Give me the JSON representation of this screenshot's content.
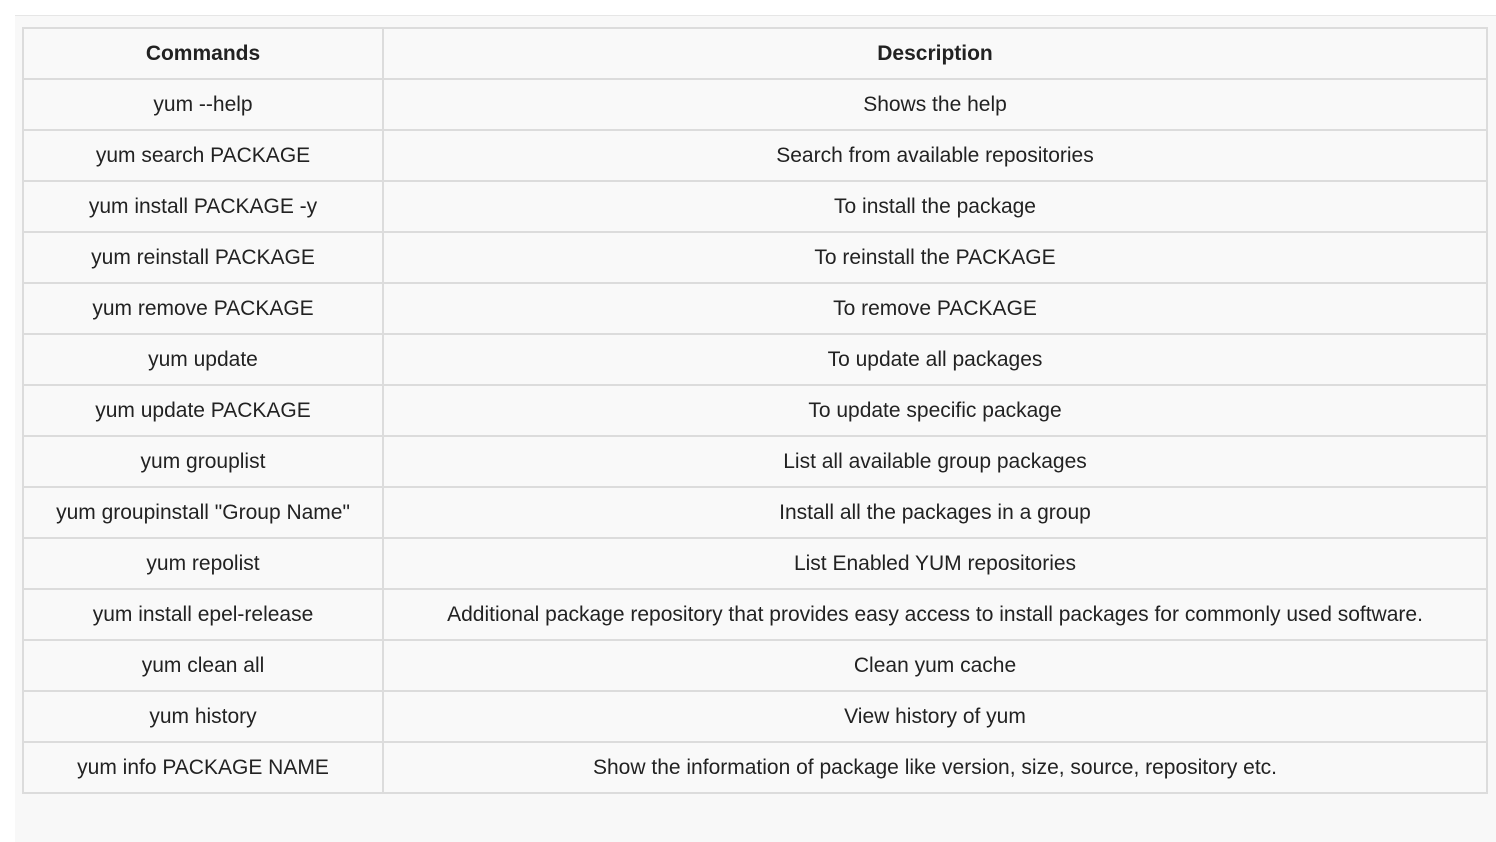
{
  "table": {
    "headers": [
      "Commands",
      "Description"
    ],
    "rows": [
      [
        "yum --help",
        "Shows the help"
      ],
      [
        "yum search PACKAGE",
        "Search from available repositories"
      ],
      [
        "yum install PACKAGE -y",
        "To install the package"
      ],
      [
        "yum reinstall PACKAGE",
        "To reinstall the PACKAGE"
      ],
      [
        "yum remove PACKAGE",
        "To remove PACKAGE"
      ],
      [
        "yum update",
        "To update all packages"
      ],
      [
        "yum update PACKAGE",
        "To update specific package"
      ],
      [
        "yum grouplist",
        "List all available group packages"
      ],
      [
        "yum groupinstall \"Group Name\"",
        "Install all the packages in a group"
      ],
      [
        "yum repolist",
        "List Enabled YUM repositories"
      ],
      [
        "yum install epel-release",
        "Additional package repository that provides easy access to install packages for commonly used software."
      ],
      [
        "yum clean all",
        "Clean yum cache"
      ],
      [
        "yum history",
        "View history of yum"
      ],
      [
        "yum info PACKAGE NAME",
        "Show the information of package like version, size, source, repository etc."
      ]
    ]
  }
}
